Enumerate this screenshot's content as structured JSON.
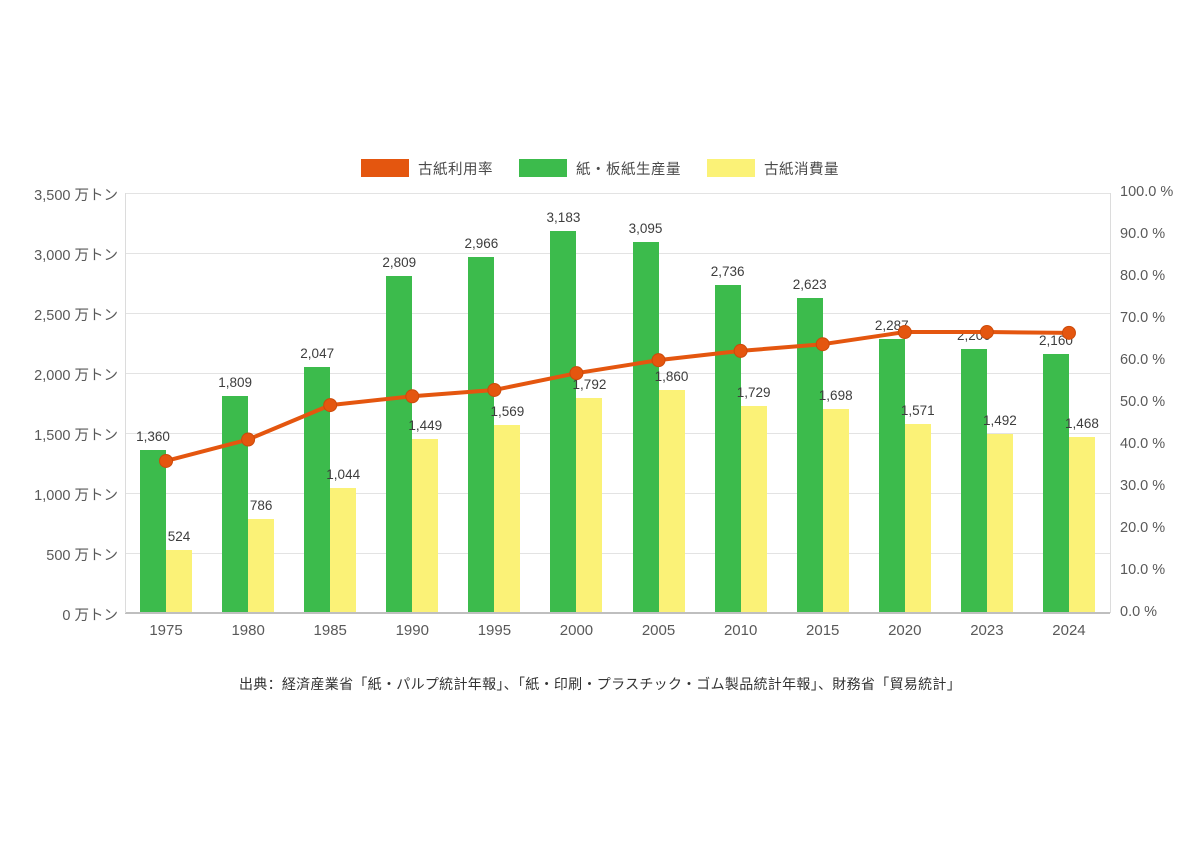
{
  "legend": {
    "items": [
      {
        "id": "utilization-rate",
        "label": "古紙利用率",
        "color": "#e4560f"
      },
      {
        "id": "paper-production",
        "label": "紙・板紙生産量",
        "color": "#3cbb4c"
      },
      {
        "id": "paper-consumption",
        "label": "古紙消費量",
        "color": "#fbf277"
      }
    ]
  },
  "source": "出典：経済産業省「紙・パルプ統計年報」、「紙・印刷・プラスチック・ゴム製品統計年報」、財務省「貿易統計」",
  "chart_data": {
    "type": "bar",
    "subtype": "grouped bars with overlay line on secondary axis",
    "categories": [
      "1975",
      "1980",
      "1985",
      "1990",
      "1995",
      "2000",
      "2005",
      "2010",
      "2015",
      "2020",
      "2023",
      "2024"
    ],
    "series": [
      {
        "name": "古紙利用率",
        "type": "line",
        "axis": "right",
        "unit": "%",
        "color": "#e4560f",
        "values": [
          36.2,
          41.3,
          49.5,
          51.6,
          53.1,
          57.1,
          60.2,
          62.4,
          64.0,
          66.9,
          66.9,
          66.7
        ],
        "values_are_estimated_from_pixels": true
      },
      {
        "name": "紙・板紙生産量",
        "type": "bar",
        "axis": "left",
        "unit": "万トン",
        "color": "#3cbb4c",
        "values": [
          1360,
          1809,
          2047,
          2809,
          2966,
          3183,
          3095,
          2736,
          2623,
          2287,
          2200,
          2160
        ]
      },
      {
        "name": "古紙消費量",
        "type": "bar",
        "axis": "left",
        "unit": "万トン",
        "color": "#fbf277",
        "values": [
          524,
          786,
          1044,
          1449,
          1569,
          1792,
          1860,
          1729,
          1698,
          1571,
          1492,
          1468
        ]
      }
    ],
    "left_axis": {
      "min": 0,
      "max": 3500,
      "step": 500,
      "unit": "万トン",
      "tick_format": "#,##0 万トン"
    },
    "right_axis": {
      "min": 0,
      "max": 100,
      "step": 10,
      "unit": "%",
      "tick_format": "0.0 %"
    },
    "grid": "horizontal gridlines at left-axis 500 steps",
    "legend_position": "top center",
    "title": "",
    "xlabel": "",
    "ylabel_left": "万トン",
    "ylabel_right": "%"
  }
}
